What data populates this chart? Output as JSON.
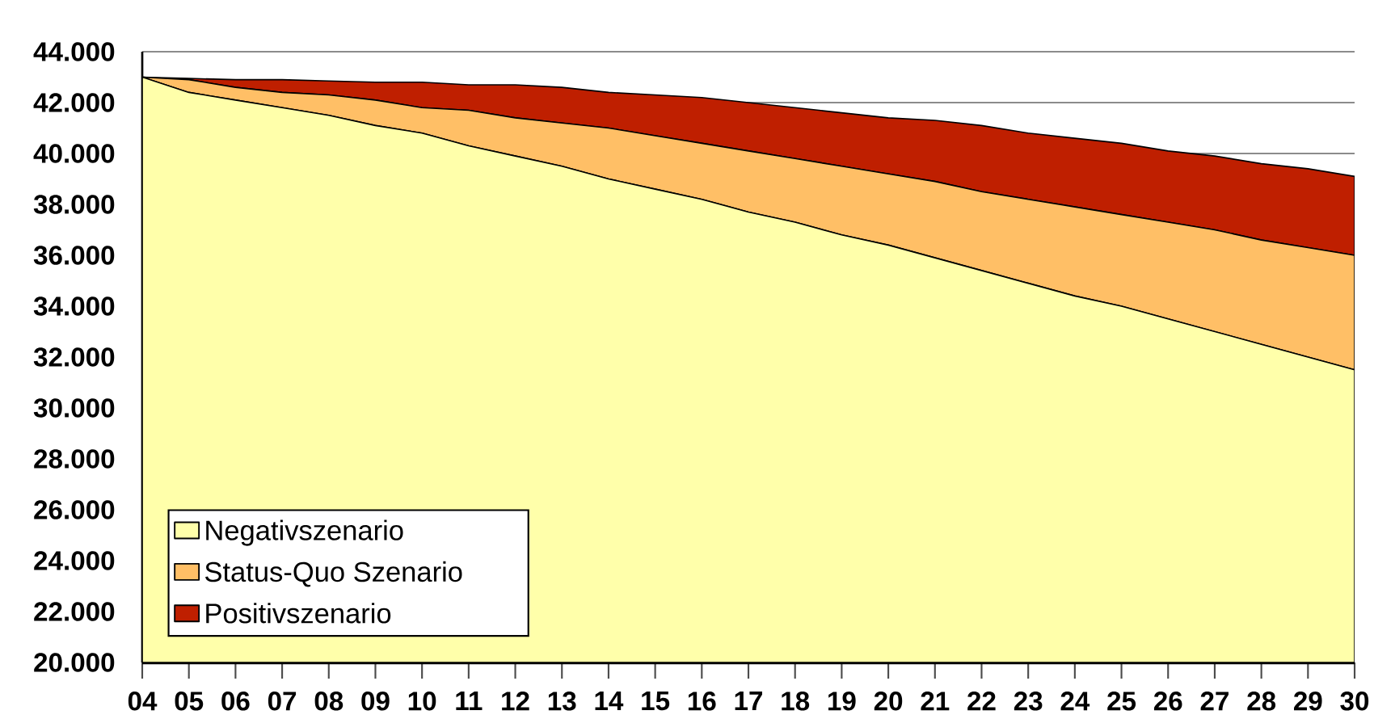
{
  "chart_data": {
    "type": "area",
    "categories": [
      "04",
      "05",
      "06",
      "07",
      "08",
      "09",
      "10",
      "11",
      "12",
      "13",
      "14",
      "15",
      "16",
      "17",
      "18",
      "19",
      "20",
      "21",
      "22",
      "23",
      "24",
      "25",
      "26",
      "27",
      "28",
      "29",
      "30"
    ],
    "series": [
      {
        "name": "Positivszenario",
        "color": "#bf1f00",
        "values": [
          43000,
          42950,
          42900,
          42900,
          42850,
          42800,
          42800,
          42700,
          42700,
          42600,
          42400,
          42300,
          42200,
          42000,
          41800,
          41600,
          41400,
          41300,
          41100,
          40800,
          40600,
          40400,
          40100,
          39900,
          39600,
          39400,
          39100
        ]
      },
      {
        "name": "Status-Quo Szenario",
        "color": "#ffbf66",
        "values": [
          43000,
          42900,
          42600,
          42400,
          42300,
          42100,
          41800,
          41700,
          41400,
          41200,
          41000,
          40700,
          40400,
          40100,
          39800,
          39500,
          39200,
          38900,
          38500,
          38200,
          37900,
          37600,
          37300,
          37000,
          36600,
          36300,
          36000
        ]
      },
      {
        "name": "Negativszenario",
        "color": "#ffffaa",
        "values": [
          43000,
          42400,
          42100,
          41800,
          41500,
          41100,
          40800,
          40300,
          39900,
          39500,
          39000,
          38600,
          38200,
          37700,
          37300,
          36800,
          36400,
          35900,
          35400,
          34900,
          34400,
          34000,
          33500,
          33000,
          32500,
          32000,
          31500
        ]
      }
    ],
    "ylim": [
      20000,
      44000
    ],
    "yticks": [
      {
        "value": 20000,
        "label": "20.000"
      },
      {
        "value": 22000,
        "label": "22.000"
      },
      {
        "value": 24000,
        "label": "24.000"
      },
      {
        "value": 26000,
        "label": "26.000"
      },
      {
        "value": 28000,
        "label": "28.000"
      },
      {
        "value": 30000,
        "label": "30.000"
      },
      {
        "value": 32000,
        "label": "32.000"
      },
      {
        "value": 34000,
        "label": "34.000"
      },
      {
        "value": 36000,
        "label": "36.000"
      },
      {
        "value": 38000,
        "label": "38.000"
      },
      {
        "value": 40000,
        "label": "40.000"
      },
      {
        "value": 42000,
        "label": "42.000"
      },
      {
        "value": 44000,
        "label": "44.000"
      }
    ],
    "grid": "y",
    "legend": "bottom left"
  }
}
